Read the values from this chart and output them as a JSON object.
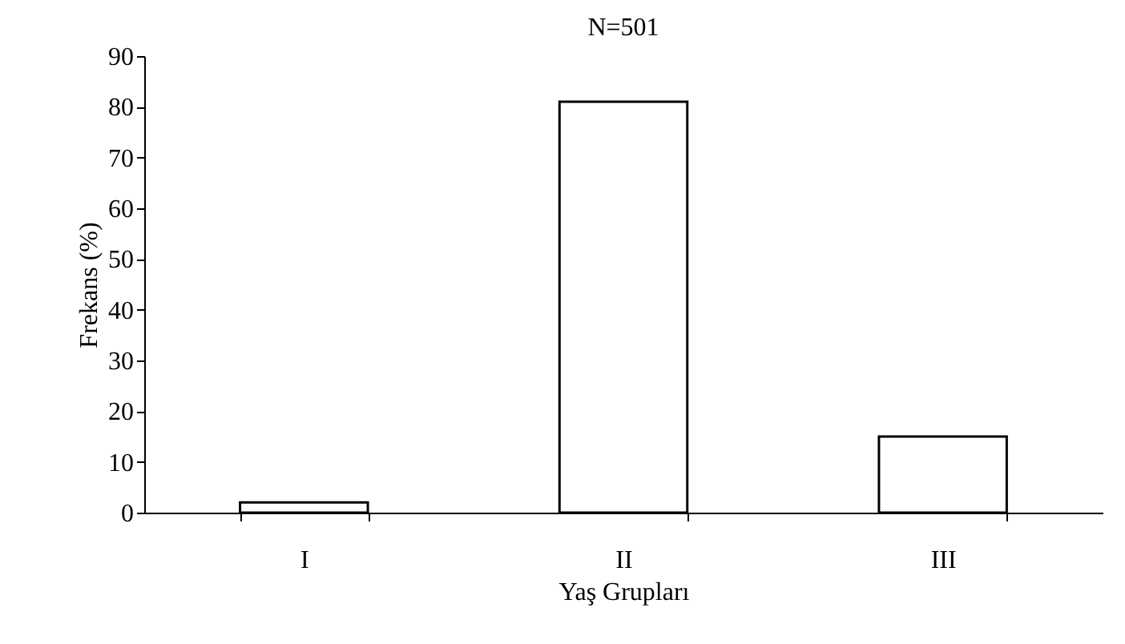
{
  "chart_data": {
    "type": "bar",
    "title": "N=501",
    "xlabel": "Yaş Grupları",
    "ylabel": "Frekans (%)",
    "categories": [
      "I",
      "II",
      "III"
    ],
    "values": [
      2,
      81,
      15
    ],
    "color": "#ffffff",
    "ylim": [
      0,
      90
    ],
    "yticks": [
      0,
      10,
      20,
      30,
      40,
      50,
      60,
      70,
      80,
      90
    ],
    "grid": false
  }
}
